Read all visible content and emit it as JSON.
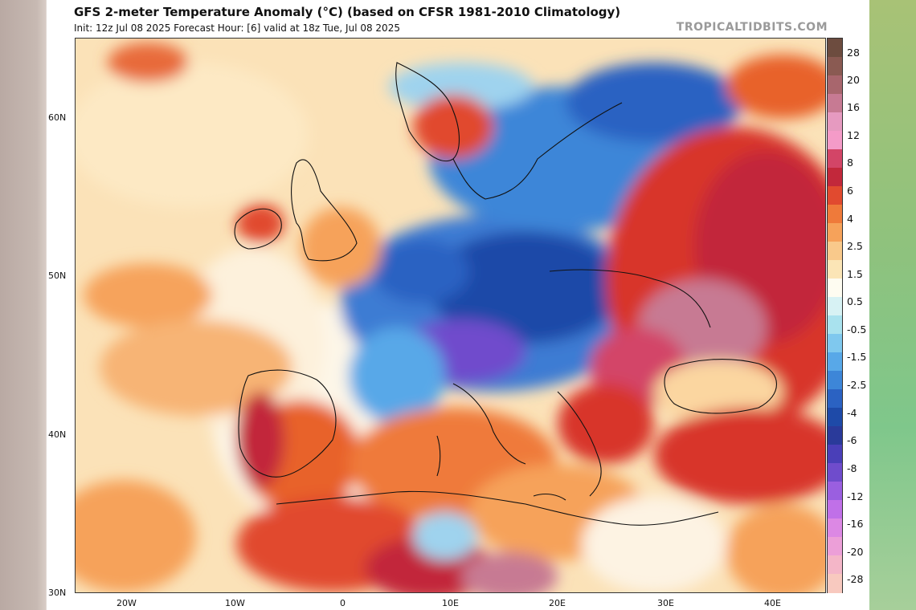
{
  "header": {
    "title": "GFS 2-meter Temperature Anomaly (°C) (based on CFSR 1981-2010 Climatology)",
    "subtitle": "Init: 12z Jul 08 2025   Forecast Hour: [6]   valid at 18z Tue, Jul 08 2025",
    "credit": "TROPICALTIDBITS.COM"
  },
  "map": {
    "latitude_labels": [
      "60N",
      "50N",
      "40N",
      "30N"
    ],
    "longitude_labels": [
      "20W",
      "10W",
      "0",
      "10E",
      "20E",
      "30E",
      "40E"
    ],
    "colors": {
      "warm_strong": "#c81e2b",
      "warm_mid": "#e8622a",
      "warm_light": "#f8b77b",
      "neutral": "#fdf1d6",
      "cool_light": "#9fd3ee",
      "cool_mid": "#3d7bd3",
      "cool_strong": "#1d4aa6",
      "purple": "#7a4cc8",
      "pink": "#d4608f"
    }
  },
  "colorbar": {
    "labels": [
      "28",
      "20",
      "16",
      "12",
      "8",
      "6",
      "4",
      "2.5",
      "1.5",
      "0.5",
      "-0.5",
      "-1.5",
      "-2.5",
      "-4",
      "-6",
      "-8",
      "-12",
      "-16",
      "-20",
      "-28"
    ],
    "colors": [
      "#6d4c3f",
      "#8a5a52",
      "#a8666d",
      "#c77a93",
      "#e69ac0",
      "#f49bc8",
      "#d34567",
      "#c2283b",
      "#e14a2f",
      "#ef7a3a",
      "#f6a25a",
      "#f9c98b",
      "#fbe5b6",
      "#fefcf1",
      "#d7f2f4",
      "#a9e2ee",
      "#7fc8ee",
      "#58a8e8",
      "#3d86d8",
      "#2b62c2",
      "#1e4aa8",
      "#2a3a9a",
      "#4a3fb8",
      "#6f4ccc",
      "#9a5fe0",
      "#c070e8",
      "#dc88e4",
      "#ec9fd8",
      "#f4b6c8",
      "#f8c9bf"
    ]
  }
}
